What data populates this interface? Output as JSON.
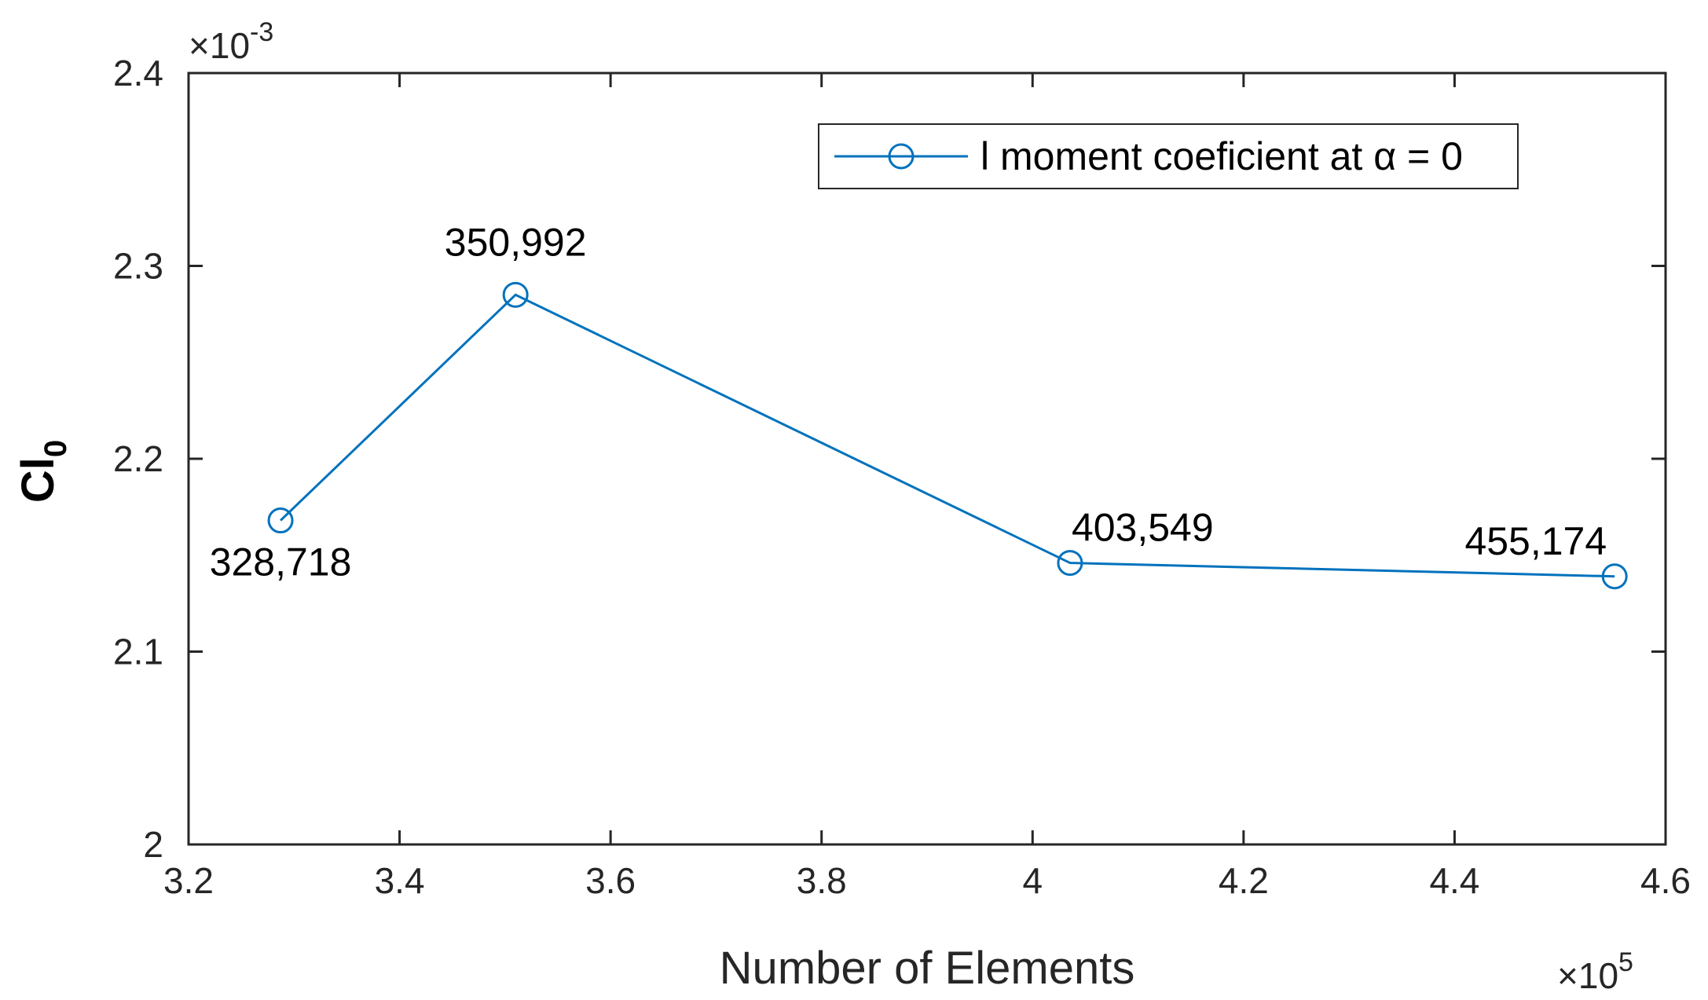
{
  "chart_data": {
    "type": "line",
    "xlabel": "Number of Elements",
    "ylabel_main": "Cl",
    "ylabel_sub": "0",
    "x_multiplier": {
      "base": "×10",
      "exp": "5"
    },
    "y_multiplier": {
      "base": "×10",
      "exp": "-3"
    },
    "xlim": [
      3.2,
      4.6
    ],
    "ylim": [
      2.0,
      2.4
    ],
    "xticks": [
      "3.2",
      "3.4",
      "3.6",
      "3.8",
      "4",
      "4.2",
      "4.4",
      "4.6"
    ],
    "yticks": [
      "2",
      "2.1",
      "2.2",
      "2.3",
      "2.4"
    ],
    "grid": false,
    "legend_position": "top-right",
    "series": [
      {
        "name": "l moment coeficient at α = 0",
        "color": "#0072BD",
        "marker": "circle",
        "x": [
          3.28718,
          3.50992,
          4.03549,
          4.55174
        ],
        "y": [
          2.168,
          2.285,
          2.146,
          2.139
        ],
        "labels": [
          "328,718",
          "350,992",
          "403,549",
          "455,174"
        ]
      }
    ]
  }
}
